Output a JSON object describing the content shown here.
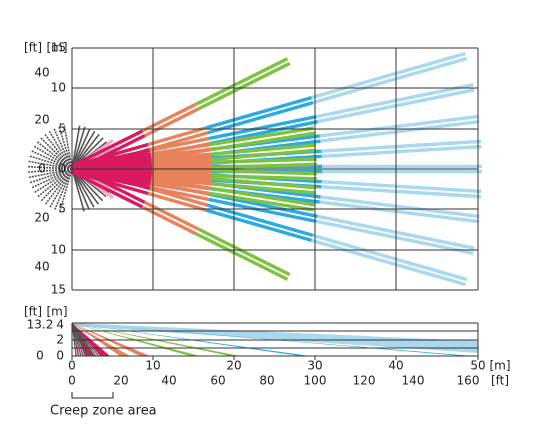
{
  "top_view": {
    "unit_ft": "[ft]",
    "unit_m": "[m]",
    "m_labels": [
      "15",
      "10",
      "5",
      "0",
      "5",
      "10",
      "15"
    ],
    "ft_labels": [
      "40",
      "20",
      "0",
      "20",
      "40"
    ]
  },
  "side_view": {
    "unit_ft": "[ft]",
    "unit_m": "[m]",
    "ft_labels": [
      "13.2",
      "0"
    ],
    "m_labels": [
      "4",
      "2",
      "0"
    ]
  },
  "x_axis": {
    "m_labels": [
      "0",
      "10",
      "20",
      "30",
      "40",
      "50"
    ],
    "m_unit": "[m]",
    "ft_labels": [
      "0",
      "20",
      "40",
      "60",
      "80",
      "100",
      "120",
      "140",
      "160"
    ],
    "ft_unit": "[ft]"
  },
  "creep_zone_label": "Creep zone area"
}
